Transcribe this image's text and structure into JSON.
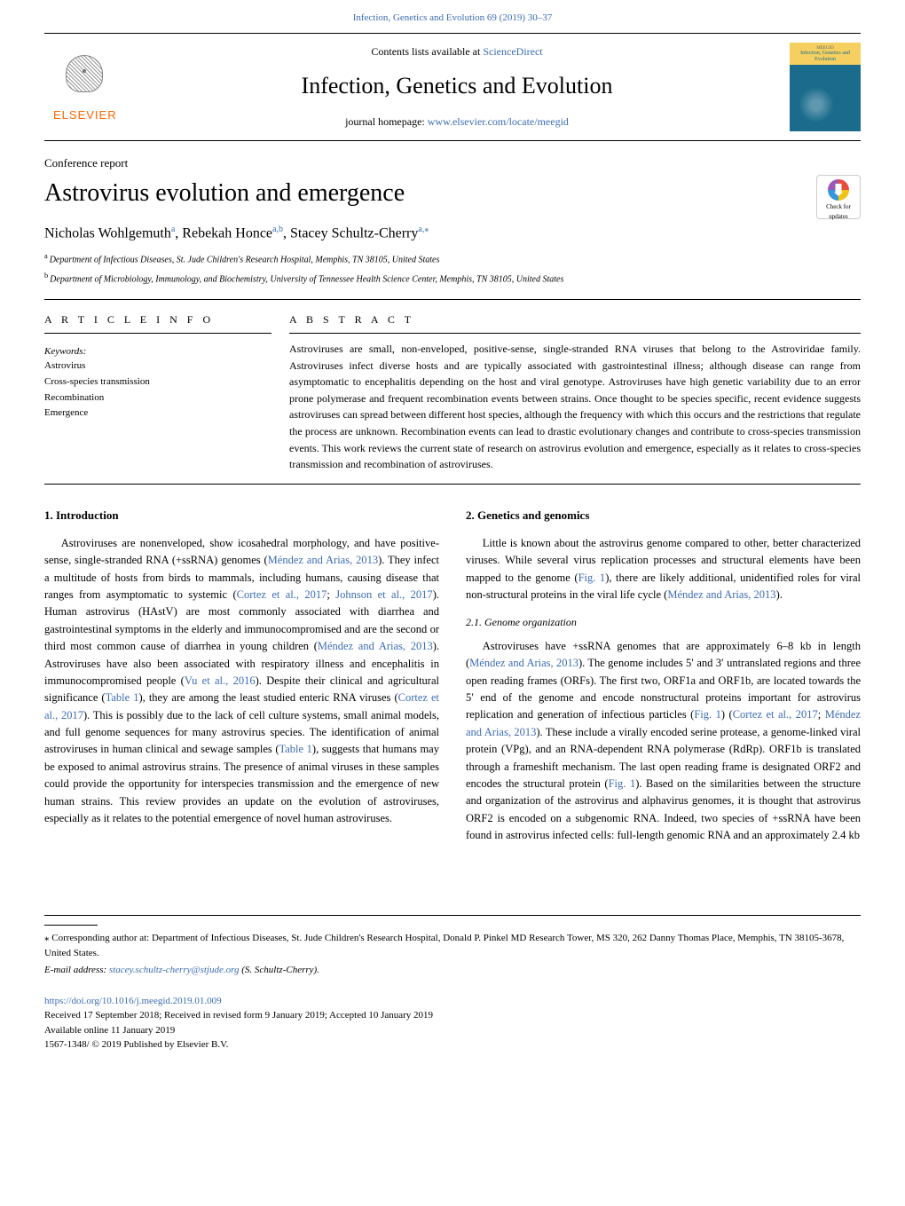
{
  "top_link": {
    "prefix": "Infection, Genetics and Evolution 69 (2019) 30–37"
  },
  "header": {
    "contents_text": "Contents lists available at ",
    "contents_link": "ScienceDirect",
    "journal_name": "Infection, Genetics and Evolution",
    "homepage_text": "journal homepage: ",
    "homepage_link": "www.elsevier.com/locate/meegid",
    "publisher": "ELSEVIER",
    "cover_title": "Infection, Genetics and Evolution"
  },
  "article": {
    "type": "Conference report",
    "title": "Astrovirus evolution and emergence",
    "authors_html": "Nicholas Wohlgemuth",
    "author1": "Nicholas Wohlgemuth",
    "author1_sup": "a",
    "author2": "Rebekah Honce",
    "author2_sup": "a,b",
    "author3": "Stacey Schultz-Cherry",
    "author3_sup": "a,",
    "author3_star": "⁎",
    "check_updates": "Check for updates"
  },
  "affiliations": {
    "a": "Department of Infectious Diseases, St. Jude Children's Research Hospital, Memphis, TN 38105, United States",
    "b": "Department of Microbiology, Immunology, and Biochemistry, University of Tennessee Health Science Center, Memphis, TN 38105, United States"
  },
  "info": {
    "heading": "A R T I C L E  I N F O",
    "keywords_label": "Keywords:",
    "keywords": [
      "Astrovirus",
      "Cross-species transmission",
      "Recombination",
      "Emergence"
    ]
  },
  "abstract": {
    "heading": "A B S T R A C T",
    "text": "Astroviruses are small, non-enveloped, positive-sense, single-stranded RNA viruses that belong to the Astroviridae family. Astroviruses infect diverse hosts and are typically associated with gastrointestinal illness; although disease can range from asymptomatic to encephalitis depending on the host and viral genotype. Astroviruses have high genetic variability due to an error prone polymerase and frequent recombination events between strains. Once thought to be species specific, recent evidence suggests astroviruses can spread between different host species, although the frequency with which this occurs and the restrictions that regulate the process are unknown. Recombination events can lead to drastic evolutionary changes and contribute to cross-species transmission events. This work reviews the current state of research on astrovirus evolution and emergence, especially as it relates to cross-species transmission and recombination of astroviruses."
  },
  "sections": {
    "s1_title": "1. Introduction",
    "s1_p1a": "Astroviruses are nonenveloped, show icosahedral morphology, and have positive-sense, single-stranded RNA (+ssRNA) genomes (",
    "s1_ref1": "Méndez and Arias, 2013",
    "s1_p1b": "). They infect a multitude of hosts from birds to mammals, including humans, causing disease that ranges from asymptomatic to systemic (",
    "s1_ref2": "Cortez et al., 2017",
    "s1_p1c": "; ",
    "s1_ref3": "Johnson et al., 2017",
    "s1_p1d": "). Human astrovirus (HAstV) are most commonly associated with diarrhea and gastrointestinal symptoms in the elderly and immunocompromised and are the second or third most common cause of diarrhea in young children (",
    "s1_ref4": "Méndez and Arias, 2013",
    "s1_p1e": "). Astroviruses have also been associated with respiratory illness and encephalitis in immunocompromised people (",
    "s1_ref5": "Vu et al., 2016",
    "s1_p1f": "). Despite their clinical and agricultural significance (",
    "s1_ref6": "Table 1",
    "s1_p1g": "), they are among the least studied enteric RNA viruses (",
    "s1_ref7": "Cortez et al., 2017",
    "s1_p1h": "). This is possibly due to the lack of cell culture systems, small animal models, and full genome sequences for many astrovirus species. The identification of animal astroviruses in human clinical and sewage samples (",
    "s1_ref8": "Table 1",
    "s1_p1i": "), suggests that humans may be exposed to animal astrovirus strains. The presence of animal viruses in these samples could provide the opportunity for interspecies transmission and the emergence of new human strains. This review provides an update on the evolution of astroviruses, especially as it relates to the potential emergence of novel human astroviruses.",
    "s2_title": "2. Genetics and genomics",
    "s2_p1a": "Little is known about the astrovirus genome compared to other, better characterized viruses. While several virus replication processes and structural elements have been mapped to the genome (",
    "s2_ref1": "Fig. 1",
    "s2_p1b": "), there are likely additional, unidentified roles for viral non-structural proteins in the viral life cycle (",
    "s2_ref2": "Méndez and Arias, 2013",
    "s2_p1c": ").",
    "s21_title": "2.1. Genome organization",
    "s21_p1a": "Astroviruses have +ssRNA genomes that are approximately 6–8 kb in length (",
    "s21_ref1": "Méndez and Arias, 2013",
    "s21_p1b": "). The genome includes 5′ and 3′ untranslated regions and three open reading frames (ORFs). The first two, ORF1a and ORF1b, are located towards the 5′ end of the genome and encode nonstructural proteins important for astrovirus replication and generation of infectious particles (",
    "s21_ref2": "Fig. 1",
    "s21_p1c": ") (",
    "s21_ref3": "Cortez et al., 2017",
    "s21_p1d": "; ",
    "s21_ref4": "Méndez and Arias, 2013",
    "s21_p1e": "). These include a virally encoded serine protease, a genome-linked viral protein (VPg), and an RNA-dependent RNA polymerase (RdRp). ORF1b is translated through a frameshift mechanism. The last open reading frame is designated ORF2 and encodes the structural protein (",
    "s21_ref5": "Fig. 1",
    "s21_p1f": "). Based on the similarities between the structure and organization of the astrovirus and alphavirus genomes, it is thought that astrovirus ORF2 is encoded on a subgenomic RNA. Indeed, two species of +ssRNA have been found in astrovirus infected cells: full-length genomic RNA and an approximately 2.4 kb"
  },
  "footer": {
    "corr_pre": "⁎ Corresponding author at: Department of Infectious Diseases, St. Jude Children's Research Hospital, Donald P. Pinkel MD Research Tower, MS 320, 262 Danny Thomas Place, Memphis, TN 38105-3678, United States.",
    "email_label": "E-mail address: ",
    "email": "stacey.schultz-cherry@stjude.org",
    "email_suffix": " (S. Schultz-Cherry).",
    "doi": "https://doi.org/10.1016/j.meegid.2019.01.009",
    "received": "Received 17 September 2018; Received in revised form 9 January 2019; Accepted 10 January 2019",
    "available": "Available online 11 January 2019",
    "copyright": "1567-1348/ © 2019 Published by Elsevier B.V."
  },
  "colors": {
    "link": "#3d6cb3",
    "elsevier_orange": "#ff6600",
    "cover_yellow": "#f5d060",
    "cover_teal": "#1a6b8c"
  }
}
